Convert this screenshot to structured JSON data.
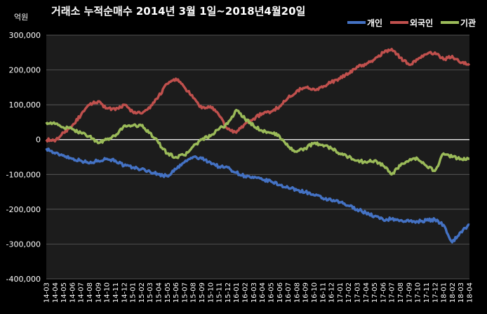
{
  "chart_data": {
    "type": "line",
    "title": "거래소 누적순매수 2014년 3월 1일~2018년4월20일",
    "unit_label": "억원",
    "ylim": [
      -400000,
      300000
    ],
    "yticks": [
      300000,
      200000,
      100000,
      0,
      -100000,
      -200000,
      -300000,
      -400000
    ],
    "ytick_labels": [
      "300,000",
      "200,000",
      "100,000",
      "0",
      "-100,000",
      "-200,000",
      "-300,000",
      "-400,000"
    ],
    "grid": true,
    "legend_position": "top-right",
    "categories": [
      "14-03",
      "14-04",
      "14-05",
      "14-06",
      "14-07",
      "14-08",
      "14-09",
      "14-10",
      "14-11",
      "14-12",
      "15-01",
      "15-02",
      "15-03",
      "15-04",
      "15-05",
      "15-06",
      "15-07",
      "15-08",
      "15-09",
      "15-10",
      "15-11",
      "15-12",
      "16-01",
      "16-02",
      "16-03",
      "16-04",
      "16-05",
      "16-06",
      "16-07",
      "16-08",
      "16-09",
      "16-10",
      "16-11",
      "16-12",
      "17-01",
      "17-02",
      "17-03",
      "17-04",
      "17-05",
      "17-06",
      "17-07",
      "17-08",
      "17-09",
      "17-10",
      "17-11",
      "17-12",
      "18-01",
      "18-02",
      "18-03",
      "18-04"
    ],
    "series": [
      {
        "name": "개인",
        "color": "#4472C4",
        "values": [
          -25000,
          -40000,
          -45000,
          -55000,
          -60000,
          -68000,
          -60000,
          -55000,
          -60000,
          -75000,
          -80000,
          -85000,
          -92000,
          -100000,
          -105000,
          -85000,
          -65000,
          -50000,
          -55000,
          -65000,
          -78000,
          -80000,
          -95000,
          -105000,
          -110000,
          -115000,
          -120000,
          -130000,
          -138000,
          -145000,
          -150000,
          -160000,
          -168000,
          -175000,
          -180000,
          -190000,
          -200000,
          -210000,
          -220000,
          -230000,
          -228000,
          -232000,
          -235000,
          -235000,
          -232000,
          -230000,
          -245000,
          -295000,
          -265000,
          -245000
        ]
      },
      {
        "name": "외국인",
        "color": "#C0504D",
        "values": [
          0,
          -5000,
          20000,
          40000,
          70000,
          100000,
          110000,
          90000,
          85000,
          100000,
          80000,
          75000,
          90000,
          125000,
          160000,
          175000,
          150000,
          120000,
          90000,
          95000,
          70000,
          30000,
          20000,
          45000,
          60000,
          75000,
          80000,
          95000,
          120000,
          140000,
          150000,
          145000,
          150000,
          165000,
          175000,
          190000,
          210000,
          215000,
          230000,
          250000,
          260000,
          235000,
          215000,
          230000,
          245000,
          250000,
          230000,
          240000,
          220000,
          218000
        ]
      },
      {
        "name": "기관",
        "color": "#9BBB59",
        "values": [
          50000,
          45000,
          35000,
          30000,
          20000,
          10000,
          -10000,
          0,
          10000,
          40000,
          40000,
          40000,
          20000,
          -10000,
          -40000,
          -50000,
          -45000,
          -20000,
          0,
          10000,
          30000,
          45000,
          85000,
          60000,
          40000,
          25000,
          20000,
          10000,
          -20000,
          -35000,
          -25000,
          -10000,
          -15000,
          -25000,
          -40000,
          -50000,
          -60000,
          -65000,
          -60000,
          -75000,
          -100000,
          -75000,
          -60000,
          -55000,
          -75000,
          -90000,
          -40000,
          -50000,
          -55000,
          -55000
        ]
      }
    ]
  }
}
